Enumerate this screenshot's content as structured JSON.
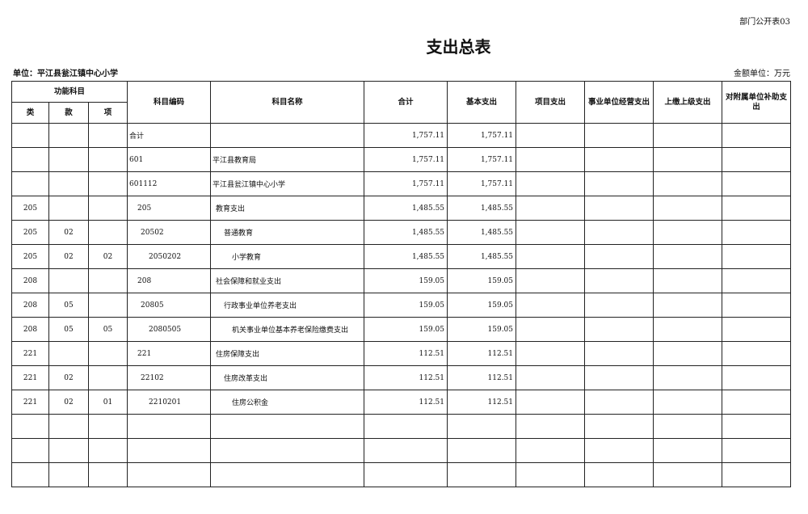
{
  "form_no": "部门公开表03",
  "title": "支出总表",
  "unit": "单位：平江县瓮江镇中心小学",
  "money_unit": "金额单位：万元",
  "headers": {
    "func": "功能科目",
    "lei": "类",
    "kuan": "款",
    "xiang": "项",
    "code": "科目编码",
    "name": "科目名称",
    "total": "合计",
    "basic": "基本支出",
    "project": "项目支出",
    "business": "事业单位经营支出",
    "upper": "上缴上级支出",
    "subsidy": "对附属单位补助支出"
  },
  "rows": [
    {
      "lei": "",
      "kuan": "",
      "xiang": "",
      "code": "合计",
      "name": "",
      "total": "1,757.11",
      "basic": "1,757.11",
      "level": 0
    },
    {
      "lei": "",
      "kuan": "",
      "xiang": "",
      "code": "601",
      "name": "平江县教育局",
      "total": "1,757.11",
      "basic": "1,757.11",
      "level": 0
    },
    {
      "lei": "",
      "kuan": "",
      "xiang": "",
      "code": "601112",
      "name": "平江县瓮江镇中心小学",
      "total": "1,757.11",
      "basic": "1,757.11",
      "level": 1
    },
    {
      "lei": "205",
      "kuan": "",
      "xiang": "",
      "code": "205",
      "name": "教育支出",
      "total": "1,485.55",
      "basic": "1,485.55",
      "level": 2
    },
    {
      "lei": "205",
      "kuan": "02",
      "xiang": "",
      "code": "20502",
      "name": "普通教育",
      "total": "1,485.55",
      "basic": "1,485.55",
      "level": 3
    },
    {
      "lei": "205",
      "kuan": "02",
      "xiang": "02",
      "code": "2050202",
      "name": "小学教育",
      "total": "1,485.55",
      "basic": "1,485.55",
      "level": 4
    },
    {
      "lei": "208",
      "kuan": "",
      "xiang": "",
      "code": "208",
      "name": "社会保障和就业支出",
      "total": "159.05",
      "basic": "159.05",
      "level": 2
    },
    {
      "lei": "208",
      "kuan": "05",
      "xiang": "",
      "code": "20805",
      "name": "行政事业单位养老支出",
      "total": "159.05",
      "basic": "159.05",
      "level": 3
    },
    {
      "lei": "208",
      "kuan": "05",
      "xiang": "05",
      "code": "2080505",
      "name": "机关事业单位基本养老保险缴费支出",
      "total": "159.05",
      "basic": "159.05",
      "level": 4
    },
    {
      "lei": "221",
      "kuan": "",
      "xiang": "",
      "code": "221",
      "name": "住房保障支出",
      "total": "112.51",
      "basic": "112.51",
      "level": 2
    },
    {
      "lei": "221",
      "kuan": "02",
      "xiang": "",
      "code": "22102",
      "name": "住房改革支出",
      "total": "112.51",
      "basic": "112.51",
      "level": 3
    },
    {
      "lei": "221",
      "kuan": "02",
      "xiang": "01",
      "code": "2210201",
      "name": "住房公积金",
      "total": "112.51",
      "basic": "112.51",
      "level": 4
    }
  ],
  "empty_rows": 3
}
